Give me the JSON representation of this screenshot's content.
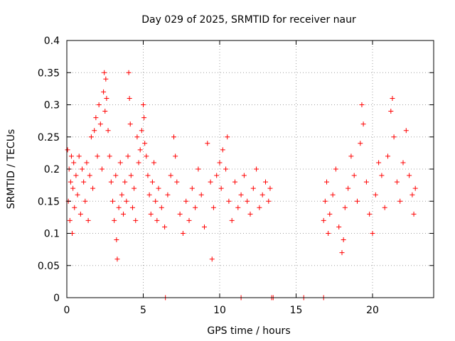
{
  "chart_data": {
    "type": "scatter",
    "title": "Day 029 of 2025, SRMTID for receiver naur",
    "xlabel": "GPS time / hours",
    "ylabel": "SRMTID / TECUs",
    "xlim": [
      0,
      24
    ],
    "ylim": [
      0,
      0.4
    ],
    "x_ticks": [
      0,
      5,
      10,
      15,
      20
    ],
    "x_tick_labels": [
      "0",
      "5",
      "10",
      "15",
      "20"
    ],
    "y_ticks": [
      0,
      0.05,
      0.1,
      0.15,
      0.2,
      0.25,
      0.3,
      0.35,
      0.4
    ],
    "y_tick_labels": [
      "0",
      "0.05",
      "0.1",
      "0.15",
      "0.2",
      "0.25",
      "0.3",
      "0.35",
      "0.4"
    ],
    "grid": true,
    "marker": "+",
    "color": "#ff0000",
    "series": [
      {
        "name": "SRMTID",
        "points": [
          [
            0.05,
            0.23
          ],
          [
            0.1,
            0.15
          ],
          [
            0.15,
            0.2
          ],
          [
            0.2,
            0.12
          ],
          [
            0.25,
            0.18
          ],
          [
            0.3,
            0.22
          ],
          [
            0.35,
            0.1
          ],
          [
            0.4,
            0.17
          ],
          [
            0.45,
            0.21
          ],
          [
            0.5,
            0.14
          ],
          [
            0.6,
            0.19
          ],
          [
            0.7,
            0.16
          ],
          [
            0.8,
            0.22
          ],
          [
            0.9,
            0.13
          ],
          [
            1.0,
            0.2
          ],
          [
            1.1,
            0.18
          ],
          [
            1.2,
            0.15
          ],
          [
            1.3,
            0.21
          ],
          [
            1.4,
            0.12
          ],
          [
            1.5,
            0.19
          ],
          [
            1.6,
            0.25
          ],
          [
            1.7,
            0.17
          ],
          [
            1.8,
            0.26
          ],
          [
            1.9,
            0.28
          ],
          [
            2.0,
            0.22
          ],
          [
            2.1,
            0.3
          ],
          [
            2.2,
            0.27
          ],
          [
            2.3,
            0.2
          ],
          [
            2.4,
            0.32
          ],
          [
            2.45,
            0.35
          ],
          [
            2.5,
            0.29
          ],
          [
            2.55,
            0.34
          ],
          [
            2.6,
            0.31
          ],
          [
            2.7,
            0.26
          ],
          [
            2.8,
            0.22
          ],
          [
            2.9,
            0.18
          ],
          [
            3.0,
            0.15
          ],
          [
            3.1,
            0.12
          ],
          [
            3.2,
            0.19
          ],
          [
            3.25,
            0.09
          ],
          [
            3.3,
            0.06
          ],
          [
            3.4,
            0.14
          ],
          [
            3.5,
            0.21
          ],
          [
            3.6,
            0.16
          ],
          [
            3.7,
            0.13
          ],
          [
            3.8,
            0.18
          ],
          [
            3.9,
            0.15
          ],
          [
            4.0,
            0.22
          ],
          [
            4.05,
            0.35
          ],
          [
            4.1,
            0.31
          ],
          [
            4.15,
            0.27
          ],
          [
            4.2,
            0.19
          ],
          [
            4.3,
            0.14
          ],
          [
            4.4,
            0.17
          ],
          [
            4.5,
            0.12
          ],
          [
            4.6,
            0.25
          ],
          [
            4.7,
            0.21
          ],
          [
            4.8,
            0.23
          ],
          [
            4.9,
            0.26
          ],
          [
            5.0,
            0.3
          ],
          [
            5.05,
            0.28
          ],
          [
            5.1,
            0.24
          ],
          [
            5.2,
            0.22
          ],
          [
            5.3,
            0.19
          ],
          [
            5.4,
            0.16
          ],
          [
            5.5,
            0.13
          ],
          [
            5.6,
            0.18
          ],
          [
            5.7,
            0.21
          ],
          [
            5.8,
            0.15
          ],
          [
            5.9,
            0.12
          ],
          [
            6.0,
            0.17
          ],
          [
            6.2,
            0.14
          ],
          [
            6.4,
            0.11
          ],
          [
            6.6,
            0.16
          ],
          [
            6.8,
            0.19
          ],
          [
            7.0,
            0.25
          ],
          [
            7.1,
            0.22
          ],
          [
            7.2,
            0.18
          ],
          [
            7.4,
            0.13
          ],
          [
            7.6,
            0.1
          ],
          [
            7.8,
            0.15
          ],
          [
            8.0,
            0.12
          ],
          [
            8.2,
            0.17
          ],
          [
            8.4,
            0.14
          ],
          [
            8.6,
            0.2
          ],
          [
            8.8,
            0.16
          ],
          [
            9.0,
            0.11
          ],
          [
            9.2,
            0.24
          ],
          [
            9.4,
            0.18
          ],
          [
            9.5,
            0.06
          ],
          [
            9.6,
            0.14
          ],
          [
            9.8,
            0.19
          ],
          [
            10.0,
            0.21
          ],
          [
            10.1,
            0.17
          ],
          [
            10.2,
            0.23
          ],
          [
            10.4,
            0.2
          ],
          [
            10.5,
            0.25
          ],
          [
            10.6,
            0.15
          ],
          [
            10.8,
            0.12
          ],
          [
            11.0,
            0.18
          ],
          [
            11.2,
            0.14
          ],
          [
            11.4,
            0.16
          ],
          [
            11.6,
            0.19
          ],
          [
            11.8,
            0.15
          ],
          [
            12.0,
            0.13
          ],
          [
            12.2,
            0.17
          ],
          [
            12.4,
            0.2
          ],
          [
            12.6,
            0.14
          ],
          [
            12.8,
            0.16
          ],
          [
            13.0,
            0.18
          ],
          [
            13.2,
            0.15
          ],
          [
            13.3,
            0.17
          ],
          [
            16.8,
            0.12
          ],
          [
            16.9,
            0.15
          ],
          [
            17.0,
            0.18
          ],
          [
            17.1,
            0.1
          ],
          [
            17.2,
            0.13
          ],
          [
            17.4,
            0.16
          ],
          [
            17.6,
            0.2
          ],
          [
            17.8,
            0.11
          ],
          [
            18.0,
            0.07
          ],
          [
            18.1,
            0.09
          ],
          [
            18.2,
            0.14
          ],
          [
            18.4,
            0.17
          ],
          [
            18.6,
            0.22
          ],
          [
            18.8,
            0.19
          ],
          [
            19.0,
            0.15
          ],
          [
            19.2,
            0.24
          ],
          [
            19.3,
            0.3
          ],
          [
            19.4,
            0.27
          ],
          [
            19.6,
            0.18
          ],
          [
            19.8,
            0.13
          ],
          [
            20.0,
            0.1
          ],
          [
            20.2,
            0.16
          ],
          [
            20.4,
            0.21
          ],
          [
            20.6,
            0.19
          ],
          [
            20.8,
            0.14
          ],
          [
            21.0,
            0.22
          ],
          [
            21.2,
            0.29
          ],
          [
            21.3,
            0.31
          ],
          [
            21.4,
            0.25
          ],
          [
            21.6,
            0.18
          ],
          [
            21.8,
            0.15
          ],
          [
            22.0,
            0.21
          ],
          [
            22.2,
            0.26
          ],
          [
            22.4,
            0.19
          ],
          [
            22.6,
            0.16
          ],
          [
            22.7,
            0.13
          ],
          [
            22.8,
            0.17
          ],
          [
            6.45,
            0.0
          ],
          [
            11.4,
            0.0
          ],
          [
            13.4,
            0.0
          ],
          [
            13.5,
            0.0
          ],
          [
            15.5,
            0.0
          ],
          [
            16.8,
            0.0
          ]
        ]
      }
    ]
  }
}
